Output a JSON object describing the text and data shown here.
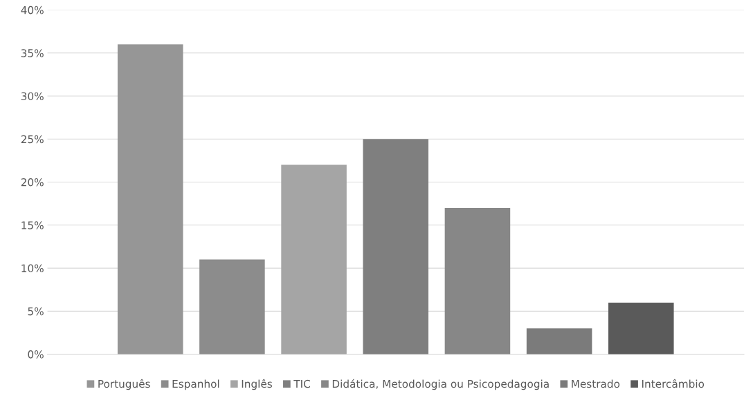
{
  "chart_data": {
    "type": "bar",
    "categories": [
      null
    ],
    "series": [
      {
        "name": "Português",
        "color": "#969696",
        "values": [
          36
        ]
      },
      {
        "name": "Espanhol",
        "color": "#8c8c8c",
        "values": [
          11
        ]
      },
      {
        "name": "Inglês",
        "color": "#a5a5a5",
        "values": [
          22
        ]
      },
      {
        "name": "TIC",
        "color": "#7f7f7f",
        "values": [
          25
        ]
      },
      {
        "name": "Didática, Metodologia ou Psicopedagogia",
        "color": "#878787",
        "values": [
          17
        ]
      },
      {
        "name": "Mestrado",
        "color": "#7b7b7b",
        "values": [
          3
        ]
      },
      {
        "name": "Intercâmbio",
        "color": "#5a5a5a",
        "values": [
          6
        ]
      }
    ],
    "ylim": [
      0,
      40
    ],
    "yticks": [
      {
        "value": 0,
        "label": "0%"
      },
      {
        "value": 5,
        "label": "5%"
      },
      {
        "value": 10,
        "label": "10%"
      },
      {
        "value": 15,
        "label": "15%"
      },
      {
        "value": 20,
        "label": "20%"
      },
      {
        "value": 25,
        "label": "25%"
      },
      {
        "value": 30,
        "label": "30%"
      },
      {
        "value": 35,
        "label": "35%"
      },
      {
        "value": 40,
        "label": "40%"
      }
    ],
    "grid": "y",
    "legend": "bottom"
  }
}
